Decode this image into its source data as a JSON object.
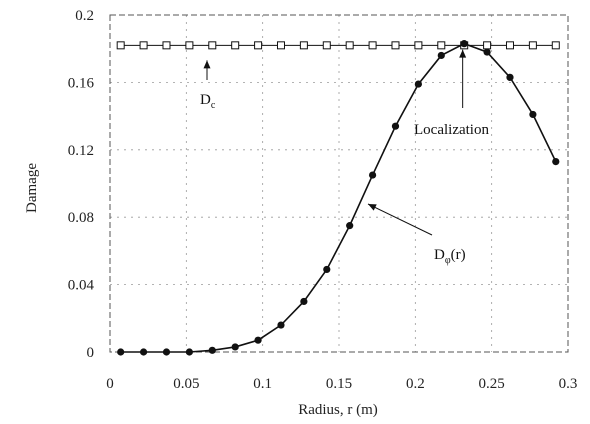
{
  "chart_data": {
    "type": "line",
    "title": "",
    "xlabel": "Radius, r (m)",
    "ylabel": "Damage",
    "xlim": [
      0,
      0.3
    ],
    "ylim": [
      0,
      0.2
    ],
    "grid": true,
    "x_ticks": [
      {
        "value": 0,
        "label": "0"
      },
      {
        "value": 0.05,
        "label": "0.05"
      },
      {
        "value": 0.1,
        "label": "0.1"
      },
      {
        "value": 0.15,
        "label": "0.15"
      },
      {
        "value": 0.2,
        "label": "0.2"
      },
      {
        "value": 0.25,
        "label": "0.25"
      },
      {
        "value": 0.3,
        "label": "0.3"
      }
    ],
    "y_ticks": [
      {
        "value": 0,
        "label": "0"
      },
      {
        "value": 0.04,
        "label": "0.04"
      },
      {
        "value": 0.08,
        "label": "0.08"
      },
      {
        "value": 0.12,
        "label": "0.12"
      },
      {
        "value": 0.16,
        "label": "0.16"
      },
      {
        "value": 0.2,
        "label": "0.2"
      }
    ],
    "series": [
      {
        "label_main": "D",
        "label_sub": "c",
        "marker": "square",
        "x": [
          0.007,
          0.022,
          0.037,
          0.052,
          0.067,
          0.082,
          0.097,
          0.112,
          0.127,
          0.142,
          0.157,
          0.172,
          0.187,
          0.202,
          0.217,
          0.232,
          0.247,
          0.262,
          0.277,
          0.292
        ],
        "y": [
          0.182,
          0.182,
          0.182,
          0.182,
          0.182,
          0.182,
          0.182,
          0.182,
          0.182,
          0.182,
          0.182,
          0.182,
          0.182,
          0.182,
          0.182,
          0.182,
          0.182,
          0.182,
          0.182,
          0.182
        ]
      },
      {
        "label_main": "D",
        "label_sub": "φ",
        "label_suffix": "(r)",
        "marker": "circle",
        "x": [
          0.007,
          0.022,
          0.037,
          0.052,
          0.067,
          0.082,
          0.097,
          0.112,
          0.127,
          0.142,
          0.157,
          0.172,
          0.187,
          0.202,
          0.217,
          0.232,
          0.247,
          0.262,
          0.277,
          0.292
        ],
        "y": [
          0.0,
          0.0,
          0.0,
          0.0,
          0.001,
          0.003,
          0.007,
          0.016,
          0.03,
          0.049,
          0.075,
          0.105,
          0.134,
          0.159,
          0.176,
          0.183,
          0.178,
          0.163,
          0.141,
          0.113
        ]
      }
    ],
    "annotations": [
      {
        "text": "Localization",
        "x": 0.231,
        "y": 0.183
      }
    ]
  }
}
